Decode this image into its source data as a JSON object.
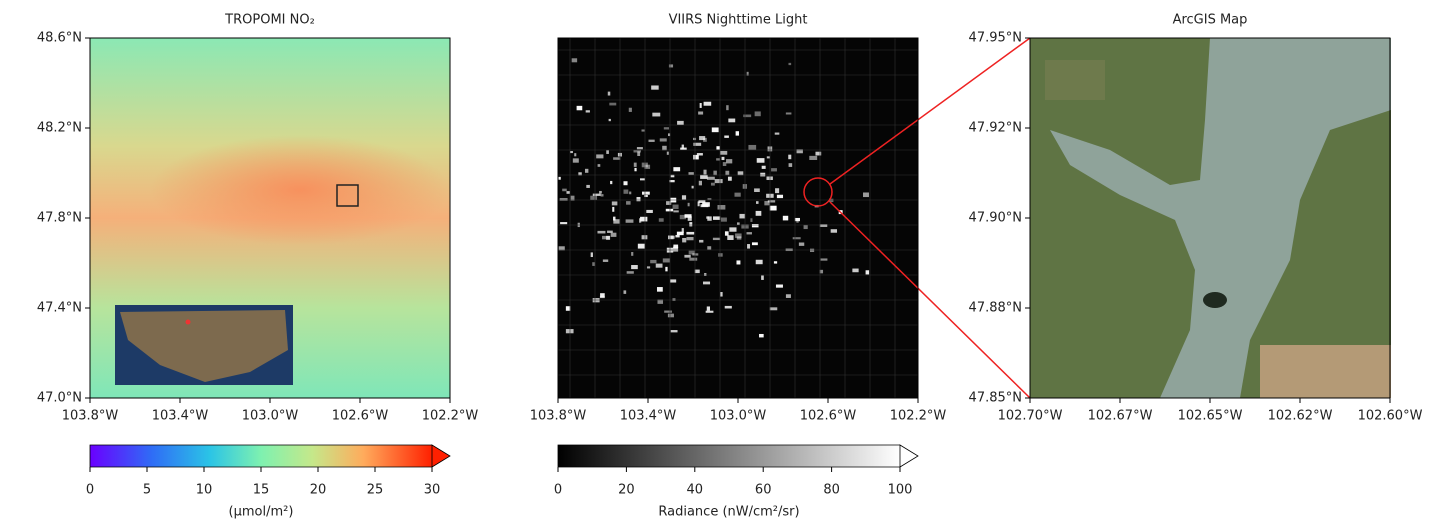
{
  "chart_data": [
    {
      "type": "map",
      "title": "TROPOMI NO₂",
      "xlim": [
        -103.8,
        -102.2
      ],
      "ylim": [
        47.0,
        48.6
      ],
      "xticks": [
        {
          "value": -103.8,
          "label": "103.8°W"
        },
        {
          "value": -103.4,
          "label": "103.4°W"
        },
        {
          "value": -103.0,
          "label": "103.0°W"
        },
        {
          "value": -102.6,
          "label": "102.6°W"
        },
        {
          "value": -102.2,
          "label": "102.2°W"
        }
      ],
      "yticks": [
        {
          "value": 47.0,
          "label": "47.0°N"
        },
        {
          "value": 47.4,
          "label": "47.4°N"
        },
        {
          "value": 47.8,
          "label": "47.8°N"
        },
        {
          "value": 48.2,
          "label": "48.2°N"
        },
        {
          "value": 48.6,
          "label": "48.6°N"
        }
      ],
      "colorbar": {
        "colormap": "rainbow",
        "lim": [
          0,
          30
        ],
        "ticks": [
          0,
          5,
          10,
          15,
          20,
          25,
          30
        ],
        "label": "(μmol/m²)"
      }
    },
    {
      "type": "map",
      "title": "VIIRS Nighttime Light",
      "xlim": [
        -103.8,
        -102.2
      ],
      "ylim": [
        47.0,
        48.6
      ],
      "xticks": [
        {
          "value": -103.8,
          "label": "103.8°W"
        },
        {
          "value": -103.4,
          "label": "103.4°W"
        },
        {
          "value": -103.0,
          "label": "103.0°W"
        },
        {
          "value": -102.6,
          "label": "102.6°W"
        },
        {
          "value": -102.2,
          "label": "102.2°W"
        }
      ],
      "yticks": [],
      "colorbar": {
        "colormap": "gray",
        "lim": [
          0,
          100
        ],
        "ticks": [
          0,
          20,
          40,
          60,
          80,
          100
        ],
        "label": "Radiance (nW/cm²/sr)"
      }
    },
    {
      "type": "map",
      "title": "ArcGIS Map",
      "xlim": [
        -102.7,
        -102.6
      ],
      "ylim": [
        47.85,
        47.95
      ],
      "xticks": [
        {
          "value": -102.7,
          "label": "102.70°W"
        },
        {
          "value": -102.675,
          "label": "102.67°W"
        },
        {
          "value": -102.65,
          "label": "102.65°W"
        },
        {
          "value": -102.625,
          "label": "102.62°W"
        },
        {
          "value": -102.6,
          "label": "102.60°W"
        }
      ],
      "yticks": [
        {
          "value": 47.85,
          "label": "47.85°N"
        },
        {
          "value": 47.875,
          "label": "47.88°N"
        },
        {
          "value": 47.9,
          "label": "47.90°N"
        },
        {
          "value": 47.925,
          "label": "47.92°N"
        },
        {
          "value": 47.95,
          "label": "47.95°N"
        }
      ]
    }
  ]
}
